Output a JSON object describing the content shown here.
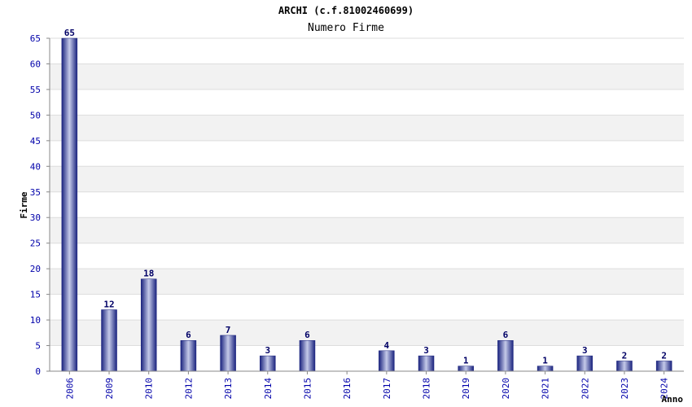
{
  "chart_data": {
    "type": "bar",
    "title": "ARCHI (c.f.81002460699)",
    "subtitle": "Numero Firme",
    "xlabel": "Anno",
    "ylabel": "Firme",
    "ylim": [
      0,
      65
    ],
    "yticks": [
      0,
      5,
      10,
      15,
      20,
      25,
      30,
      35,
      40,
      45,
      50,
      55,
      60,
      65
    ],
    "grid": true,
    "categories": [
      "2006",
      "2009",
      "2010",
      "2012",
      "2013",
      "2014",
      "2015",
      "2016",
      "2017",
      "2018",
      "2019",
      "2020",
      "2021",
      "2022",
      "2023",
      "2024"
    ],
    "values": [
      65,
      12,
      18,
      6,
      7,
      3,
      6,
      0,
      4,
      3,
      1,
      6,
      1,
      3,
      2,
      2
    ],
    "value_labels": [
      "65",
      "12",
      "18",
      "6",
      "7",
      "3",
      "6",
      "",
      "4",
      "3",
      "1",
      "6",
      "1",
      "3",
      "2",
      "2"
    ],
    "colors": {
      "bar_dark": "#1a237e",
      "bar_light": "#c5cae9",
      "label": "#000066",
      "tick_label": "#0000aa",
      "band": "#f2f2f2",
      "grid": "#dddddd",
      "axis": "#888888"
    }
  }
}
